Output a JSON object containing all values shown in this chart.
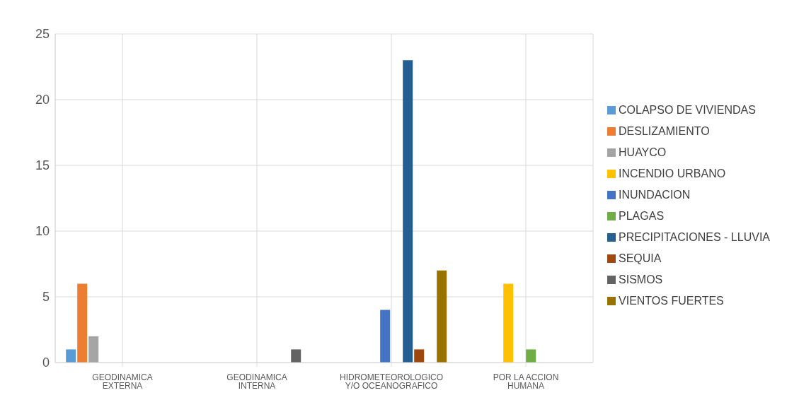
{
  "chart_data": {
    "type": "bar",
    "categories": [
      "GEODINAMICA EXTERNA",
      "GEODINAMICA INTERNA",
      "HIDROMETEOROLOGICO Y/O OCEANOGRAFICO",
      "POR LA ACCION HUMANA"
    ],
    "series": [
      {
        "name": "COLAPSO DE VIVIENDAS",
        "color": "#5b9bd5",
        "values": [
          1,
          null,
          null,
          null
        ]
      },
      {
        "name": "DESLIZAMIENTO",
        "color": "#ed7d31",
        "values": [
          6,
          null,
          null,
          null
        ]
      },
      {
        "name": "HUAYCO",
        "color": "#a5a5a5",
        "values": [
          2,
          null,
          null,
          null
        ]
      },
      {
        "name": "INCENDIO URBANO",
        "color": "#ffc000",
        "values": [
          null,
          null,
          null,
          6
        ]
      },
      {
        "name": "INUNDACION",
        "color": "#4472c4",
        "values": [
          null,
          null,
          4,
          null
        ]
      },
      {
        "name": "PLAGAS",
        "color": "#70ad47",
        "values": [
          null,
          null,
          null,
          1
        ]
      },
      {
        "name": "PRECIPITACIONES - LLUVIA",
        "color": "#255e91",
        "values": [
          null,
          null,
          23,
          null
        ]
      },
      {
        "name": "SEQUIA",
        "color": "#9e480e",
        "values": [
          null,
          null,
          1,
          null
        ]
      },
      {
        "name": "SISMOS",
        "color": "#636363",
        "values": [
          null,
          1,
          null,
          null
        ]
      },
      {
        "name": "VIENTOS FUERTES",
        "color": "#997300",
        "values": [
          null,
          null,
          7,
          null
        ]
      }
    ],
    "ylim": [
      0,
      25
    ],
    "yticks": [
      0,
      5,
      10,
      15,
      20,
      25
    ],
    "grid": true,
    "legend": "right"
  }
}
